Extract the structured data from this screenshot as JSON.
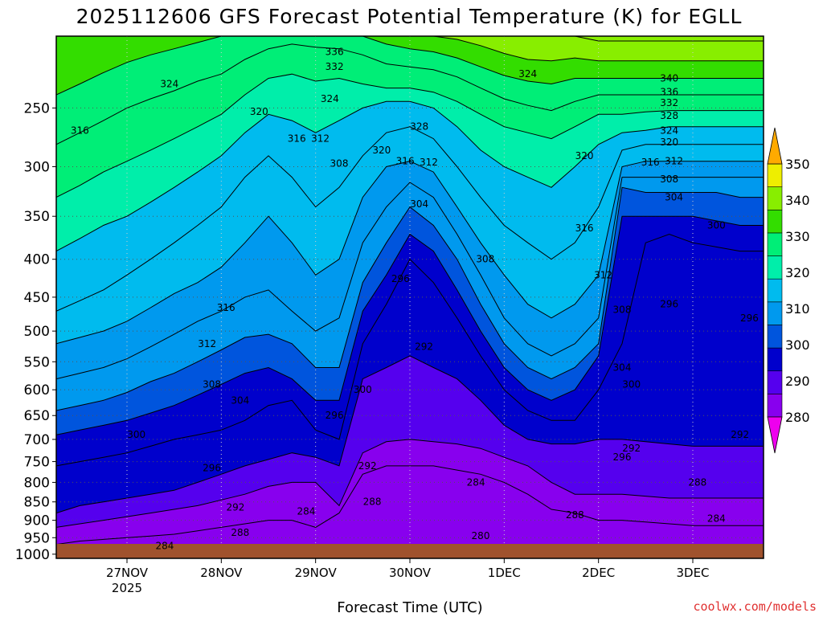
{
  "chart_data": {
    "type": "heatmap",
    "title": "2025112606 GFS Forecast Potential Temperature (K) for EGLL",
    "xlabel": "Forecast Time (UTC)",
    "ylabel": "",
    "credit": "coolwx.com/models",
    "x_ticks": [
      {
        "label": "27NOV",
        "sub": "2025",
        "t": 0.75
      },
      {
        "label": "28NOV",
        "sub": "",
        "t": 1.75
      },
      {
        "label": "29NOV",
        "sub": "",
        "t": 2.75
      },
      {
        "label": "30NOV",
        "sub": "",
        "t": 3.75
      },
      {
        "label": "1DEC",
        "sub": "",
        "t": 4.75
      },
      {
        "label": "2DEC",
        "sub": "",
        "t": 5.75
      },
      {
        "label": "3DEC",
        "sub": "",
        "t": 6.75
      }
    ],
    "xlim": [
      0,
      7.5
    ],
    "y_ticks": [
      250,
      300,
      350,
      400,
      450,
      500,
      550,
      600,
      650,
      700,
      750,
      800,
      850,
      900,
      950,
      1000
    ],
    "ylim": [
      1013,
      200
    ],
    "y_scale": "log",
    "colorbar": {
      "boundaries": [
        280,
        290,
        300,
        310,
        320,
        330,
        340,
        350
      ],
      "tick_labels": [
        "280",
        "290",
        "300",
        "310",
        "320",
        "330",
        "340",
        "350"
      ],
      "colors": [
        "#ee00ee",
        "#8800ee",
        "#5500ee",
        "#0000cc",
        "#0055dd",
        "#0099ee",
        "#00bbee",
        "#00eeaa",
        "#00ee77",
        "#33dd00",
        "#88ee00",
        "#eeee00",
        "#ffaa00"
      ],
      "extend": "both"
    },
    "contour_interval": 4,
    "surface_color": "#a0522d",
    "time_steps": [
      0,
      0.25,
      0.5,
      0.75,
      1,
      1.25,
      1.5,
      1.75,
      2,
      2.25,
      2.5,
      2.75,
      3,
      3.25,
      3.5,
      3.75,
      4,
      4.25,
      4.5,
      4.75,
      5,
      5.25,
      5.5,
      5.75,
      6,
      6.25,
      6.5,
      6.75,
      7,
      7.25,
      7.5
    ],
    "pressure_levels": [
      1000,
      950,
      900,
      850,
      800,
      750,
      700,
      650,
      600,
      550,
      500,
      450,
      400,
      350,
      300,
      250,
      200
    ],
    "isentrope_pressure_hpa": {
      "284": [
        970,
        960,
        955,
        950,
        945,
        940,
        930,
        920,
        910,
        900,
        900,
        920,
        880,
        780,
        760,
        760,
        760,
        770,
        780,
        800,
        830,
        870,
        880,
        900,
        900,
        905,
        910,
        915,
        915,
        915,
        915
      ],
      "288": [
        920,
        910,
        900,
        890,
        880,
        870,
        860,
        845,
        830,
        810,
        800,
        800,
        860,
        730,
        705,
        700,
        705,
        710,
        720,
        740,
        760,
        800,
        830,
        830,
        830,
        835,
        840,
        840,
        840,
        840,
        840
      ],
      "292": [
        880,
        860,
        850,
        840,
        830,
        820,
        800,
        780,
        760,
        745,
        730,
        740,
        760,
        580,
        560,
        540,
        560,
        580,
        620,
        670,
        700,
        710,
        710,
        700,
        700,
        705,
        710,
        715,
        715,
        715,
        715
      ],
      "296": [
        760,
        750,
        740,
        730,
        715,
        700,
        690,
        680,
        660,
        630,
        620,
        680,
        700,
        520,
        460,
        400,
        430,
        480,
        540,
        600,
        640,
        660,
        660,
        600,
        520,
        380,
        370,
        380,
        385,
        390,
        390
      ],
      "300": [
        690,
        680,
        670,
        660,
        645,
        630,
        610,
        590,
        570,
        560,
        580,
        620,
        620,
        470,
        420,
        370,
        390,
        440,
        500,
        560,
        600,
        620,
        600,
        540,
        350,
        350,
        350,
        350,
        355,
        360,
        360
      ],
      "304": [
        640,
        630,
        620,
        605,
        585,
        570,
        550,
        530,
        510,
        505,
        520,
        560,
        560,
        430,
        380,
        340,
        360,
        400,
        460,
        520,
        560,
        580,
        560,
        520,
        320,
        325,
        325,
        325,
        325,
        330,
        330
      ],
      "308": [
        580,
        570,
        560,
        545,
        525,
        505,
        485,
        470,
        450,
        440,
        470,
        500,
        480,
        380,
        340,
        315,
        330,
        370,
        420,
        480,
        520,
        540,
        520,
        480,
        310,
        310,
        310,
        310,
        310,
        310,
        310
      ],
      "312": [
        520,
        510,
        500,
        485,
        465,
        445,
        430,
        410,
        380,
        350,
        380,
        420,
        400,
        330,
        300,
        295,
        305,
        340,
        380,
        420,
        460,
        480,
        460,
        420,
        300,
        295,
        295,
        295,
        295,
        295,
        295
      ],
      "316": [
        470,
        455,
        440,
        420,
        400,
        380,
        360,
        340,
        310,
        290,
        310,
        340,
        320,
        290,
        270,
        265,
        275,
        300,
        330,
        360,
        380,
        400,
        380,
        340,
        285,
        280,
        280,
        280,
        280,
        280,
        280
      ],
      "320": [
        390,
        375,
        360,
        350,
        335,
        320,
        305,
        290,
        270,
        255,
        260,
        270,
        260,
        250,
        245,
        245,
        250,
        265,
        285,
        300,
        310,
        320,
        300,
        280,
        270,
        268,
        265,
        265,
        265,
        265,
        265
      ],
      "324": [
        330,
        318,
        305,
        295,
        285,
        275,
        265,
        255,
        240,
        228,
        225,
        230,
        228,
        232,
        235,
        235,
        238,
        245,
        255,
        265,
        270,
        275,
        265,
        255,
        255,
        253,
        252,
        252,
        252,
        252,
        252
      ],
      "328": [
        280,
        270,
        260,
        250,
        243,
        237,
        230,
        225,
        215,
        208,
        205,
        207,
        208,
        212,
        218,
        220,
        222,
        227,
        235,
        243,
        248,
        252,
        245,
        240,
        240,
        240,
        240,
        240,
        240,
        240,
        240
      ],
      "332": [
        240,
        232,
        224,
        217,
        212,
        208,
        204,
        200,
        195,
        192,
        190,
        192,
        196,
        200,
        205,
        208,
        210,
        214,
        220,
        226,
        230,
        232,
        228,
        228,
        228,
        228,
        228,
        228,
        228,
        228,
        228
      ],
      "336": [
        200,
        198,
        196,
        193,
        190,
        188,
        186,
        183,
        180,
        178,
        176,
        178,
        182,
        188,
        192,
        196,
        198,
        202,
        206,
        211,
        215,
        216,
        214,
        216,
        216,
        216,
        216,
        216,
        216,
        216,
        216
      ],
      "340": [
        175,
        173,
        171,
        169,
        167,
        165,
        163,
        161,
        159,
        157,
        155,
        157,
        161,
        166,
        171,
        175,
        177,
        180,
        184,
        189,
        193,
        195,
        195,
        203,
        203,
        203,
        203,
        203,
        203,
        203,
        203
      ]
    },
    "contour_labels": [
      {
        "text": "336",
        "t": 2.95,
        "p": 210
      },
      {
        "text": "332",
        "t": 2.95,
        "p": 220
      },
      {
        "text": "324",
        "t": 1.2,
        "p": 232
      },
      {
        "text": "324",
        "t": 2.9,
        "p": 243
      },
      {
        "text": "324",
        "t": 5.0,
        "p": 225
      },
      {
        "text": "340",
        "t": 6.5,
        "p": 228
      },
      {
        "text": "336",
        "t": 6.5,
        "p": 238
      },
      {
        "text": "332",
        "t": 6.5,
        "p": 246
      },
      {
        "text": "328",
        "t": 6.5,
        "p": 256
      },
      {
        "text": "324",
        "t": 6.5,
        "p": 268
      },
      {
        "text": "320",
        "t": 6.5,
        "p": 278
      },
      {
        "text": "316",
        "t": 0.25,
        "p": 268
      },
      {
        "text": "320",
        "t": 2.15,
        "p": 253
      },
      {
        "text": "328",
        "t": 3.85,
        "p": 265
      },
      {
        "text": "320",
        "t": 5.6,
        "p": 290
      },
      {
        "text": "316",
        "t": 2.55,
        "p": 275
      },
      {
        "text": "312",
        "t": 2.8,
        "p": 275
      },
      {
        "text": "320",
        "t": 3.45,
        "p": 285
      },
      {
        "text": "316",
        "t": 3.7,
        "p": 295
      },
      {
        "text": "312",
        "t": 3.95,
        "p": 296
      },
      {
        "text": "316",
        "t": 6.3,
        "p": 296
      },
      {
        "text": "312",
        "t": 6.55,
        "p": 295
      },
      {
        "text": "308",
        "t": 3.0,
        "p": 297
      },
      {
        "text": "308",
        "t": 6.5,
        "p": 312
      },
      {
        "text": "304",
        "t": 6.55,
        "p": 330
      },
      {
        "text": "304",
        "t": 3.85,
        "p": 337
      },
      {
        "text": "300",
        "t": 7.0,
        "p": 360
      },
      {
        "text": "316",
        "t": 5.6,
        "p": 363
      },
      {
        "text": "308",
        "t": 4.55,
        "p": 400
      },
      {
        "text": "296",
        "t": 3.65,
        "p": 425
      },
      {
        "text": "312",
        "t": 5.8,
        "p": 420
      },
      {
        "text": "308",
        "t": 6.0,
        "p": 468
      },
      {
        "text": "296",
        "t": 6.5,
        "p": 460
      },
      {
        "text": "296",
        "t": 7.35,
        "p": 480
      },
      {
        "text": "316",
        "t": 1.8,
        "p": 465
      },
      {
        "text": "312",
        "t": 1.6,
        "p": 520
      },
      {
        "text": "292",
        "t": 3.9,
        "p": 525
      },
      {
        "text": "304",
        "t": 6.0,
        "p": 560
      },
      {
        "text": "308",
        "t": 1.65,
        "p": 590
      },
      {
        "text": "300",
        "t": 6.1,
        "p": 590
      },
      {
        "text": "300",
        "t": 3.25,
        "p": 600
      },
      {
        "text": "304",
        "t": 1.95,
        "p": 620
      },
      {
        "text": "296",
        "t": 2.95,
        "p": 650
      },
      {
        "text": "300",
        "t": 0.85,
        "p": 690
      },
      {
        "text": "292",
        "t": 7.25,
        "p": 690
      },
      {
        "text": "292",
        "t": 6.1,
        "p": 720
      },
      {
        "text": "296",
        "t": 6.0,
        "p": 740
      },
      {
        "text": "296",
        "t": 1.65,
        "p": 765
      },
      {
        "text": "292",
        "t": 3.3,
        "p": 760
      },
      {
        "text": "288",
        "t": 6.8,
        "p": 800
      },
      {
        "text": "284",
        "t": 4.45,
        "p": 800
      },
      {
        "text": "292",
        "t": 1.9,
        "p": 865
      },
      {
        "text": "288",
        "t": 3.35,
        "p": 850
      },
      {
        "text": "284",
        "t": 2.65,
        "p": 875
      },
      {
        "text": "288",
        "t": 5.5,
        "p": 885
      },
      {
        "text": "284",
        "t": 7.0,
        "p": 895
      },
      {
        "text": "288",
        "t": 1.95,
        "p": 935
      },
      {
        "text": "280",
        "t": 4.5,
        "p": 945
      },
      {
        "text": "284",
        "t": 1.15,
        "p": 975
      }
    ]
  }
}
